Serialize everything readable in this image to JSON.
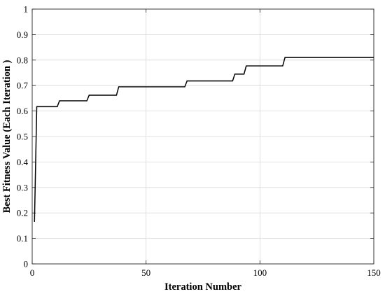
{
  "chart_data": {
    "type": "line",
    "title": "",
    "xlabel": "Iteration Number",
    "ylabel": "Best Fitness Value (Each Iteration )",
    "xlim": [
      0,
      150
    ],
    "ylim": [
      0,
      1
    ],
    "xticks": [
      0,
      50,
      100,
      150
    ],
    "yticks": [
      0,
      0.1,
      0.2,
      0.3,
      0.4,
      0.5,
      0.6,
      0.7,
      0.8,
      0.9,
      1
    ],
    "xtick_labels": [
      "0",
      "50",
      "100",
      "150"
    ],
    "ytick_labels": [
      "0",
      "0.1",
      "0.2",
      "0.3",
      "0.4",
      "0.5",
      "0.6",
      "0.7",
      "0.8",
      "0.9",
      "1"
    ],
    "grid": true,
    "legend": "none",
    "series": [
      {
        "color": "#000000",
        "x": [
          1,
          2,
          11,
          12,
          24,
          25,
          37,
          38,
          67,
          68,
          88,
          89,
          93,
          94,
          110,
          111,
          150
        ],
        "y": [
          0.165,
          0.617,
          0.617,
          0.64,
          0.64,
          0.662,
          0.662,
          0.695,
          0.695,
          0.718,
          0.718,
          0.745,
          0.745,
          0.777,
          0.777,
          0.81,
          0.81
        ]
      }
    ]
  }
}
